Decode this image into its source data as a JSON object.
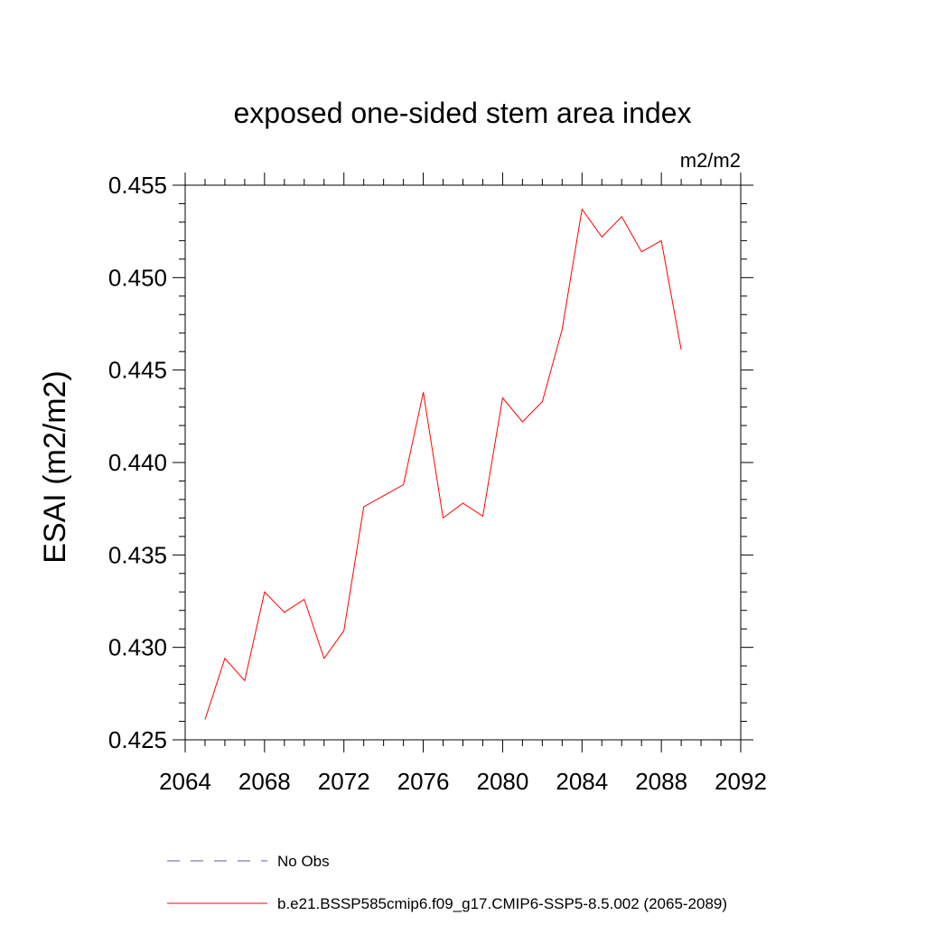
{
  "chart_data": {
    "type": "line",
    "title": "exposed one-sided stem area index",
    "units_label": "m2/m2",
    "ylabel": "ESAI  (m2/m2)",
    "xlabel": "",
    "xlim": [
      2064,
      2092
    ],
    "ylim": [
      0.425,
      0.455
    ],
    "xticks": [
      "2064",
      "2068",
      "2072",
      "2076",
      "2080",
      "2084",
      "2088",
      "2092"
    ],
    "yticks": [
      "0.425",
      "0.430",
      "0.435",
      "0.440",
      "0.445",
      "0.450",
      "0.455"
    ],
    "grid": false,
    "legend_position": "bottom",
    "series": [
      {
        "name": "b.e21.BSSP585cmip6.f09_g17.CMIP6-SSP5-8.5.002 (2065-2089)",
        "color": "#ff0000",
        "style": "solid",
        "x": [
          2065,
          2066,
          2067,
          2068,
          2069,
          2070,
          2071,
          2072,
          2073,
          2074,
          2075,
          2076,
          2077,
          2078,
          2079,
          2080,
          2081,
          2082,
          2083,
          2084,
          2085,
          2086,
          2087,
          2088,
          2089
        ],
        "y": [
          0.4261,
          0.4294,
          0.4282,
          0.433,
          0.4319,
          0.4326,
          0.4294,
          0.4309,
          0.4376,
          0.4382,
          0.4388,
          0.4438,
          0.437,
          0.4378,
          0.4371,
          0.4435,
          0.4422,
          0.4433,
          0.4472,
          0.4537,
          0.4522,
          0.4533,
          0.4514,
          0.452,
          0.4461
        ]
      }
    ],
    "legend": [
      {
        "label": "No Obs",
        "color": "#5a5aa8",
        "style": "dashed"
      },
      {
        "label": "b.e21.BSSP585cmip6.f09_g17.CMIP6-SSP5-8.5.002 (2065-2089)",
        "color": "#ff0000",
        "style": "solid"
      }
    ]
  }
}
